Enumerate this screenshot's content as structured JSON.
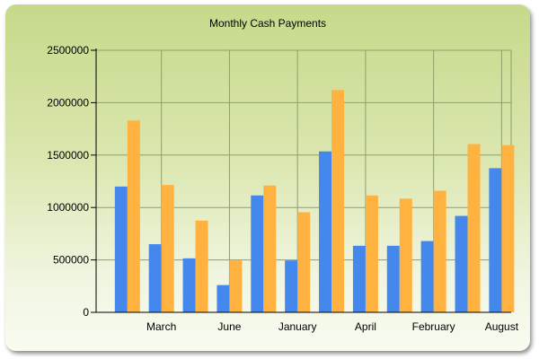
{
  "chart_data": {
    "type": "bar",
    "title": "Monthly Cash Payments",
    "xlabel": "",
    "ylabel": "",
    "ylim": [
      0,
      2500000
    ],
    "y_ticks": [
      "0",
      "500000",
      "1000000",
      "1500000",
      "2000000",
      "2500000"
    ],
    "categories": [
      "",
      "March",
      "",
      "June",
      "",
      "January",
      "",
      "April",
      "",
      "February",
      "",
      "August"
    ],
    "series": [
      {
        "values": [
          1200000,
          650000,
          515000,
          260000,
          1115000,
          495000,
          1535000,
          635000,
          635000,
          680000,
          920000,
          1375000
        ]
      },
      {
        "values": [
          1830000,
          1215000,
          875000,
          495000,
          1210000,
          955000,
          2120000,
          1115000,
          1085000,
          1160000,
          1605000,
          1595000
        ]
      }
    ],
    "grid": true,
    "legend": "none"
  },
  "colors": {
    "series_1": "#4488ee",
    "series_2": "#ffb23f",
    "grid": "#8f9f6a",
    "axis": "#000000"
  }
}
